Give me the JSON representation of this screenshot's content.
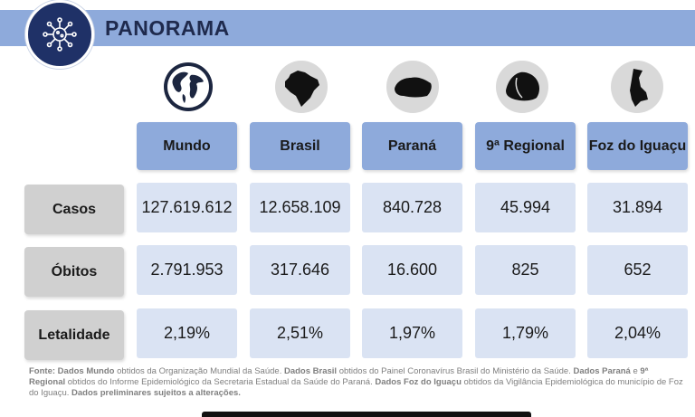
{
  "title": "PANORAMA",
  "columns": [
    "Mundo",
    "Brasil",
    "Paraná",
    "9ª Regional",
    "Foz do Iguaçu"
  ],
  "column_icons": [
    "globe-icon",
    "brazil-map-icon",
    "parana-map-icon",
    "regional-map-icon",
    "foz-map-icon"
  ],
  "rows": [
    {
      "label": "Casos",
      "values": [
        "127.619.612",
        "12.658.109",
        "840.728",
        "45.994",
        "31.894"
      ]
    },
    {
      "label": "Óbitos",
      "values": [
        "2.791.953",
        "317.646",
        "16.600",
        "825",
        "652"
      ]
    },
    {
      "label": "Letalidade",
      "values": [
        "2,19%",
        "2,51%",
        "1,97%",
        "1,79%",
        "2,04%"
      ]
    }
  ],
  "footnote": [
    {
      "text": "Fonte: ",
      "bold": true
    },
    {
      "text": "Dados Mundo",
      "bold": true
    },
    {
      "text": " obtidos da Organização Mundial da Saúde. ",
      "bold": false
    },
    {
      "text": "Dados Brasil",
      "bold": true
    },
    {
      "text": " obtidos do Painel Coronavírus Brasil do Ministério da Saúde. ",
      "bold": false
    },
    {
      "text": "Dados Paraná",
      "bold": true
    },
    {
      "text": " e ",
      "bold": false
    },
    {
      "text": "9ª Regional",
      "bold": true
    },
    {
      "text": " obtidos do Informe Epidemiológico da Secretaria Estadual da Saúde do Paraná. ",
      "bold": false
    },
    {
      "text": "Dados Foz do Iguaçu",
      "bold": true
    },
    {
      "text": " obtidos da Vigilância Epidemiológica do município de Foz do Iguaçu. ",
      "bold": false
    },
    {
      "text": "Dados preliminares sujeitos a alterações.",
      "bold": true
    }
  ],
  "colors": {
    "banner": "#8eaadb",
    "logo": "#1f3167",
    "column_header": "#8eaadb",
    "row_header": "#d0d0d0",
    "cell": "#dae3f3"
  }
}
